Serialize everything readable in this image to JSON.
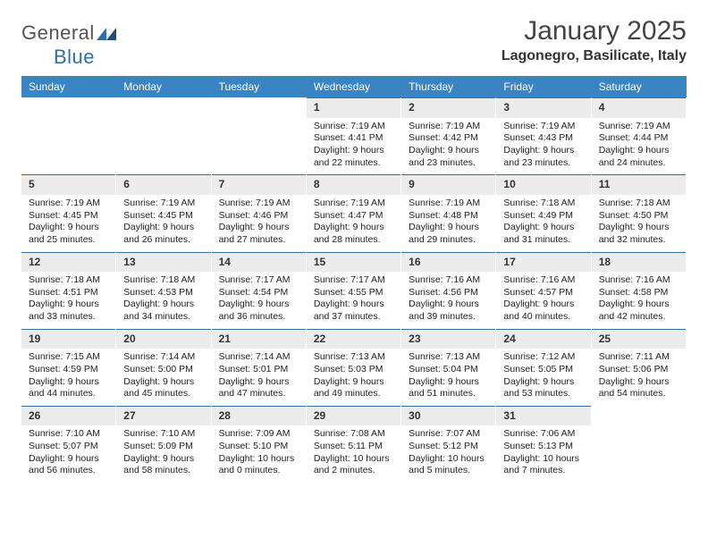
{
  "logo": {
    "text_gray": "General",
    "text_blue": "Blue"
  },
  "title": "January 2025",
  "location": "Lagonegro, Basilicate, Italy",
  "colors": {
    "header_bg": "#3b84c4",
    "header_text": "#ffffff",
    "band_bg": "#ececec",
    "band_border": "#2f6fa8",
    "body_bg": "#ffffff",
    "logo_blue": "#2f6fa8",
    "text": "#333333"
  },
  "day_names": [
    "Sunday",
    "Monday",
    "Tuesday",
    "Wednesday",
    "Thursday",
    "Friday",
    "Saturday"
  ],
  "weeks": [
    [
      {
        "n": "",
        "sr": "",
        "ss": "",
        "dl1": "",
        "dl2": ""
      },
      {
        "n": "",
        "sr": "",
        "ss": "",
        "dl1": "",
        "dl2": ""
      },
      {
        "n": "",
        "sr": "",
        "ss": "",
        "dl1": "",
        "dl2": ""
      },
      {
        "n": "1",
        "sr": "Sunrise: 7:19 AM",
        "ss": "Sunset: 4:41 PM",
        "dl1": "Daylight: 9 hours",
        "dl2": "and 22 minutes."
      },
      {
        "n": "2",
        "sr": "Sunrise: 7:19 AM",
        "ss": "Sunset: 4:42 PM",
        "dl1": "Daylight: 9 hours",
        "dl2": "and 23 minutes."
      },
      {
        "n": "3",
        "sr": "Sunrise: 7:19 AM",
        "ss": "Sunset: 4:43 PM",
        "dl1": "Daylight: 9 hours",
        "dl2": "and 23 minutes."
      },
      {
        "n": "4",
        "sr": "Sunrise: 7:19 AM",
        "ss": "Sunset: 4:44 PM",
        "dl1": "Daylight: 9 hours",
        "dl2": "and 24 minutes."
      }
    ],
    [
      {
        "n": "5",
        "sr": "Sunrise: 7:19 AM",
        "ss": "Sunset: 4:45 PM",
        "dl1": "Daylight: 9 hours",
        "dl2": "and 25 minutes."
      },
      {
        "n": "6",
        "sr": "Sunrise: 7:19 AM",
        "ss": "Sunset: 4:45 PM",
        "dl1": "Daylight: 9 hours",
        "dl2": "and 26 minutes."
      },
      {
        "n": "7",
        "sr": "Sunrise: 7:19 AM",
        "ss": "Sunset: 4:46 PM",
        "dl1": "Daylight: 9 hours",
        "dl2": "and 27 minutes."
      },
      {
        "n": "8",
        "sr": "Sunrise: 7:19 AM",
        "ss": "Sunset: 4:47 PM",
        "dl1": "Daylight: 9 hours",
        "dl2": "and 28 minutes."
      },
      {
        "n": "9",
        "sr": "Sunrise: 7:19 AM",
        "ss": "Sunset: 4:48 PM",
        "dl1": "Daylight: 9 hours",
        "dl2": "and 29 minutes."
      },
      {
        "n": "10",
        "sr": "Sunrise: 7:18 AM",
        "ss": "Sunset: 4:49 PM",
        "dl1": "Daylight: 9 hours",
        "dl2": "and 31 minutes."
      },
      {
        "n": "11",
        "sr": "Sunrise: 7:18 AM",
        "ss": "Sunset: 4:50 PM",
        "dl1": "Daylight: 9 hours",
        "dl2": "and 32 minutes."
      }
    ],
    [
      {
        "n": "12",
        "sr": "Sunrise: 7:18 AM",
        "ss": "Sunset: 4:51 PM",
        "dl1": "Daylight: 9 hours",
        "dl2": "and 33 minutes."
      },
      {
        "n": "13",
        "sr": "Sunrise: 7:18 AM",
        "ss": "Sunset: 4:53 PM",
        "dl1": "Daylight: 9 hours",
        "dl2": "and 34 minutes."
      },
      {
        "n": "14",
        "sr": "Sunrise: 7:17 AM",
        "ss": "Sunset: 4:54 PM",
        "dl1": "Daylight: 9 hours",
        "dl2": "and 36 minutes."
      },
      {
        "n": "15",
        "sr": "Sunrise: 7:17 AM",
        "ss": "Sunset: 4:55 PM",
        "dl1": "Daylight: 9 hours",
        "dl2": "and 37 minutes."
      },
      {
        "n": "16",
        "sr": "Sunrise: 7:16 AM",
        "ss": "Sunset: 4:56 PM",
        "dl1": "Daylight: 9 hours",
        "dl2": "and 39 minutes."
      },
      {
        "n": "17",
        "sr": "Sunrise: 7:16 AM",
        "ss": "Sunset: 4:57 PM",
        "dl1": "Daylight: 9 hours",
        "dl2": "and 40 minutes."
      },
      {
        "n": "18",
        "sr": "Sunrise: 7:16 AM",
        "ss": "Sunset: 4:58 PM",
        "dl1": "Daylight: 9 hours",
        "dl2": "and 42 minutes."
      }
    ],
    [
      {
        "n": "19",
        "sr": "Sunrise: 7:15 AM",
        "ss": "Sunset: 4:59 PM",
        "dl1": "Daylight: 9 hours",
        "dl2": "and 44 minutes."
      },
      {
        "n": "20",
        "sr": "Sunrise: 7:14 AM",
        "ss": "Sunset: 5:00 PM",
        "dl1": "Daylight: 9 hours",
        "dl2": "and 45 minutes."
      },
      {
        "n": "21",
        "sr": "Sunrise: 7:14 AM",
        "ss": "Sunset: 5:01 PM",
        "dl1": "Daylight: 9 hours",
        "dl2": "and 47 minutes."
      },
      {
        "n": "22",
        "sr": "Sunrise: 7:13 AM",
        "ss": "Sunset: 5:03 PM",
        "dl1": "Daylight: 9 hours",
        "dl2": "and 49 minutes."
      },
      {
        "n": "23",
        "sr": "Sunrise: 7:13 AM",
        "ss": "Sunset: 5:04 PM",
        "dl1": "Daylight: 9 hours",
        "dl2": "and 51 minutes."
      },
      {
        "n": "24",
        "sr": "Sunrise: 7:12 AM",
        "ss": "Sunset: 5:05 PM",
        "dl1": "Daylight: 9 hours",
        "dl2": "and 53 minutes."
      },
      {
        "n": "25",
        "sr": "Sunrise: 7:11 AM",
        "ss": "Sunset: 5:06 PM",
        "dl1": "Daylight: 9 hours",
        "dl2": "and 54 minutes."
      }
    ],
    [
      {
        "n": "26",
        "sr": "Sunrise: 7:10 AM",
        "ss": "Sunset: 5:07 PM",
        "dl1": "Daylight: 9 hours",
        "dl2": "and 56 minutes."
      },
      {
        "n": "27",
        "sr": "Sunrise: 7:10 AM",
        "ss": "Sunset: 5:09 PM",
        "dl1": "Daylight: 9 hours",
        "dl2": "and 58 minutes."
      },
      {
        "n": "28",
        "sr": "Sunrise: 7:09 AM",
        "ss": "Sunset: 5:10 PM",
        "dl1": "Daylight: 10 hours",
        "dl2": "and 0 minutes."
      },
      {
        "n": "29",
        "sr": "Sunrise: 7:08 AM",
        "ss": "Sunset: 5:11 PM",
        "dl1": "Daylight: 10 hours",
        "dl2": "and 2 minutes."
      },
      {
        "n": "30",
        "sr": "Sunrise: 7:07 AM",
        "ss": "Sunset: 5:12 PM",
        "dl1": "Daylight: 10 hours",
        "dl2": "and 5 minutes."
      },
      {
        "n": "31",
        "sr": "Sunrise: 7:06 AM",
        "ss": "Sunset: 5:13 PM",
        "dl1": "Daylight: 10 hours",
        "dl2": "and 7 minutes."
      },
      {
        "n": "",
        "sr": "",
        "ss": "",
        "dl1": "",
        "dl2": ""
      }
    ]
  ]
}
